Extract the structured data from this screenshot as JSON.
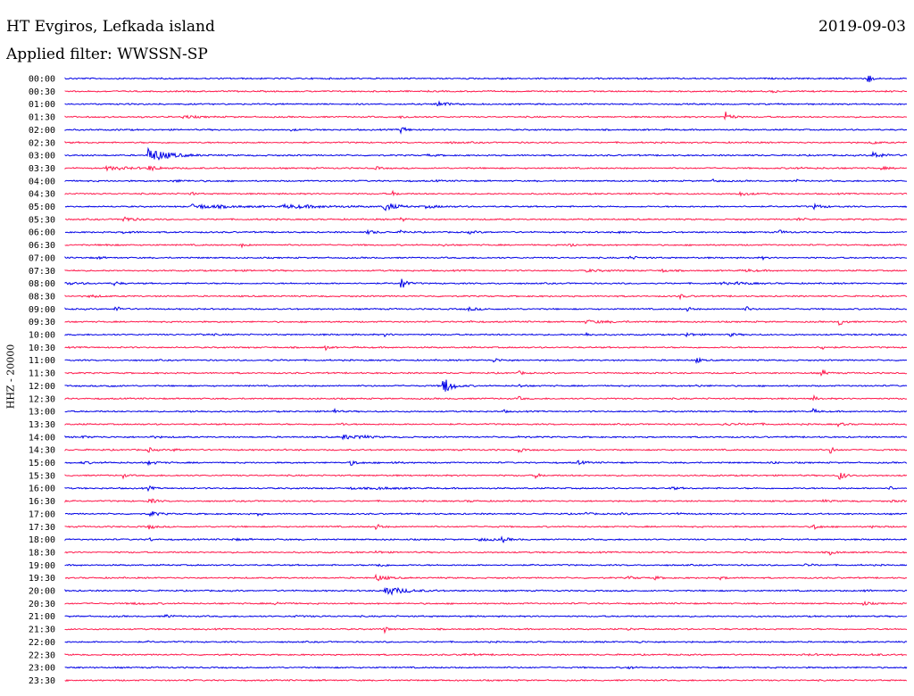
{
  "header": {
    "station": "HT Evgiros, Lefkada island",
    "date": "2019-09-03",
    "filter": "Applied filter: WWSSN-SP"
  },
  "chart_data": {
    "type": "line",
    "title": "HT Evgiros, Lefkada island",
    "ylabel": "HHZ - 20000",
    "colors": [
      "#0000e6",
      "#ff1a4d"
    ],
    "tick_labels": [
      "00:00",
      "00:30",
      "01:00",
      "01:30",
      "02:00",
      "02:30",
      "03:00",
      "03:30",
      "04:00",
      "04:30",
      "05:00",
      "05:30",
      "06:00",
      "06:30",
      "07:00",
      "07:30",
      "08:00",
      "08:30",
      "09:00",
      "09:30",
      "10:00",
      "10:30",
      "11:00",
      "11:30",
      "12:00",
      "12:30",
      "13:00",
      "13:30",
      "14:00",
      "14:30",
      "15:00",
      "15:30",
      "16:00",
      "16:30",
      "17:00",
      "17:30",
      "18:00",
      "18:30",
      "19:00",
      "19:30",
      "20:00",
      "20:30",
      "21:00",
      "21:30",
      "22:00",
      "22:30",
      "23:00",
      "23:30"
    ],
    "events": [
      [
        0,
        0.52,
        0.012,
        0.5
      ],
      [
        0,
        0.955,
        0.003,
        5
      ],
      [
        1,
        0.84,
        0.003,
        2
      ],
      [
        2,
        0.44,
        0.01,
        3
      ],
      [
        3,
        0.14,
        0.012,
        1.5
      ],
      [
        3,
        0.4,
        0.01,
        1
      ],
      [
        3,
        0.785,
        0.006,
        5
      ],
      [
        4,
        0.065,
        0.006,
        0.4
      ],
      [
        4,
        0.27,
        0.004,
        1
      ],
      [
        4,
        0.4,
        0.006,
        3
      ],
      [
        5,
        0.46,
        0.01,
        0.5
      ],
      [
        5,
        0.96,
        0.005,
        1.5
      ],
      [
        6,
        0.1,
        0.02,
        7
      ],
      [
        6,
        0.43,
        0.01,
        0.8
      ],
      [
        6,
        0.96,
        0.012,
        3
      ],
      [
        7,
        0.05,
        0.03,
        1.5
      ],
      [
        7,
        0.1,
        0.01,
        2
      ],
      [
        7,
        0.37,
        0.004,
        1.5
      ],
      [
        7,
        0.86,
        0.03,
        0.5
      ],
      [
        7,
        0.97,
        0.008,
        1
      ],
      [
        8,
        0.13,
        0.02,
        0.7
      ],
      [
        8,
        0.44,
        0.006,
        0.5
      ],
      [
        8,
        0.77,
        0.01,
        1
      ],
      [
        8,
        0.87,
        0.003,
        1
      ],
      [
        9,
        0.15,
        0.003,
        2
      ],
      [
        9,
        0.39,
        0.004,
        2
      ],
      [
        9,
        0.8,
        0.01,
        2
      ],
      [
        10,
        0.15,
        0.04,
        2
      ],
      [
        10,
        0.26,
        0.05,
        1.5
      ],
      [
        10,
        0.38,
        0.01,
        4.5
      ],
      [
        10,
        0.43,
        0.015,
        1.2
      ],
      [
        10,
        0.89,
        0.01,
        2
      ],
      [
        11,
        0.07,
        0.01,
        2.5
      ],
      [
        11,
        0.4,
        0.004,
        2
      ],
      [
        11,
        0.87,
        0.01,
        1
      ],
      [
        12,
        0.07,
        0.01,
        1
      ],
      [
        12,
        0.36,
        0.01,
        1.5
      ],
      [
        12,
        0.4,
        0.006,
        1.5
      ],
      [
        12,
        0.48,
        0.01,
        1
      ],
      [
        12,
        0.66,
        0.005,
        1.5
      ],
      [
        12,
        0.85,
        0.006,
        1.5
      ],
      [
        13,
        0.05,
        0.005,
        1
      ],
      [
        13,
        0.21,
        0.005,
        1.5
      ],
      [
        13,
        0.45,
        0.005,
        1
      ],
      [
        13,
        0.6,
        0.006,
        2
      ],
      [
        14,
        0.04,
        0.005,
        1
      ],
      [
        14,
        0.67,
        0.015,
        1
      ],
      [
        14,
        0.83,
        0.003,
        1
      ],
      [
        15,
        0.2,
        0.01,
        0.5
      ],
      [
        15,
        0.62,
        0.02,
        1
      ],
      [
        15,
        0.71,
        0.006,
        1.5
      ],
      [
        15,
        0.81,
        0.01,
        1
      ],
      [
        16,
        0.0,
        0.02,
        1
      ],
      [
        16,
        0.06,
        0.004,
        2
      ],
      [
        16,
        0.4,
        0.004,
        9
      ],
      [
        16,
        0.78,
        0.006,
        1.5
      ],
      [
        16,
        0.8,
        0.015,
        1
      ],
      [
        17,
        0.03,
        0.008,
        1.5
      ],
      [
        17,
        0.73,
        0.006,
        2
      ],
      [
        18,
        0.06,
        0.005,
        3
      ],
      [
        18,
        0.48,
        0.01,
        1.5
      ],
      [
        18,
        0.74,
        0.004,
        2
      ],
      [
        18,
        0.81,
        0.004,
        2
      ],
      [
        19,
        0.48,
        0.008,
        0.6
      ],
      [
        19,
        0.62,
        0.03,
        1.2
      ],
      [
        19,
        0.92,
        0.006,
        3
      ],
      [
        20,
        0.16,
        0.015,
        0.7
      ],
      [
        20,
        0.38,
        0.005,
        1.3
      ],
      [
        20,
        0.62,
        0.005,
        1.5
      ],
      [
        20,
        0.74,
        0.006,
        2
      ],
      [
        20,
        0.79,
        0.006,
        1.5
      ],
      [
        20,
        0.96,
        0.01,
        0.5
      ],
      [
        21,
        0.31,
        0.003,
        2
      ],
      [
        21,
        0.9,
        0.005,
        2
      ],
      [
        22,
        0.24,
        0.01,
        0.5
      ],
      [
        22,
        0.51,
        0.008,
        1.5
      ],
      [
        22,
        0.75,
        0.004,
        3
      ],
      [
        23,
        0.54,
        0.004,
        1.5
      ],
      [
        23,
        0.9,
        0.004,
        3
      ],
      [
        24,
        0.05,
        0.008,
        1
      ],
      [
        24,
        0.45,
        0.008,
        9
      ],
      [
        24,
        0.54,
        0.005,
        1.5
      ],
      [
        24,
        0.75,
        0.01,
        0.7
      ],
      [
        25,
        0.54,
        0.004,
        1.5
      ],
      [
        25,
        0.89,
        0.004,
        2
      ],
      [
        26,
        0.15,
        0.02,
        0.5
      ],
      [
        26,
        0.32,
        0.004,
        2
      ],
      [
        26,
        0.52,
        0.004,
        1.5
      ],
      [
        26,
        0.89,
        0.004,
        2
      ],
      [
        27,
        0.33,
        0.003,
        1.2
      ],
      [
        27,
        0.78,
        0.02,
        1
      ],
      [
        27,
        0.82,
        0.008,
        0.8
      ],
      [
        27,
        0.92,
        0.006,
        1.5
      ],
      [
        28,
        0.02,
        0.015,
        0.7
      ],
      [
        28,
        0.1,
        0.01,
        1
      ],
      [
        28,
        0.33,
        0.02,
        2
      ],
      [
        28,
        0.35,
        0.006,
        1.5
      ],
      [
        28,
        0.54,
        0.004,
        2
      ],
      [
        29,
        0.1,
        0.004,
        2
      ],
      [
        29,
        0.13,
        0.01,
        1
      ],
      [
        29,
        0.54,
        0.004,
        2
      ],
      [
        29,
        0.91,
        0.004,
        3
      ],
      [
        30,
        0.02,
        0.02,
        0.7
      ],
      [
        30,
        0.1,
        0.01,
        1.5
      ],
      [
        30,
        0.34,
        0.008,
        2
      ],
      [
        30,
        0.39,
        0.006,
        1
      ],
      [
        30,
        0.61,
        0.008,
        1.5
      ],
      [
        30,
        0.84,
        0.004,
        1.5
      ],
      [
        31,
        0.07,
        0.003,
        2
      ],
      [
        31,
        0.56,
        0.004,
        2
      ],
      [
        31,
        0.92,
        0.006,
        4.5
      ],
      [
        32,
        0.1,
        0.004,
        2
      ],
      [
        32,
        0.34,
        0.01,
        1
      ],
      [
        32,
        0.37,
        0.02,
        1
      ],
      [
        32,
        0.72,
        0.006,
        1.5
      ],
      [
        32,
        0.98,
        0.004,
        2
      ],
      [
        33,
        0.1,
        0.006,
        3
      ],
      [
        33,
        0.48,
        0.01,
        0.5
      ],
      [
        33,
        0.9,
        0.01,
        0.8
      ],
      [
        33,
        0.98,
        0.02,
        0.6
      ],
      [
        34,
        0.1,
        0.008,
        3
      ],
      [
        34,
        0.23,
        0.004,
        1.3
      ],
      [
        34,
        0.62,
        0.004,
        1.5
      ],
      [
        34,
        0.66,
        0.02,
        0.5
      ],
      [
        34,
        0.72,
        0.01,
        1
      ],
      [
        35,
        0.1,
        0.006,
        2
      ],
      [
        35,
        0.37,
        0.005,
        2.5
      ],
      [
        35,
        0.89,
        0.006,
        2.5
      ],
      [
        35,
        0.96,
        0.01,
        0.7
      ],
      [
        36,
        0.1,
        0.004,
        1.5
      ],
      [
        36,
        0.49,
        0.015,
        1.5
      ],
      [
        36,
        0.52,
        0.006,
        2
      ],
      [
        36,
        0.2,
        0.02,
        0.5
      ],
      [
        37,
        0.37,
        0.004,
        2
      ],
      [
        37,
        0.91,
        0.006,
        2
      ],
      [
        38,
        0.37,
        0.008,
        2
      ],
      [
        38,
        0.88,
        0.006,
        1.2
      ],
      [
        39,
        0.37,
        0.01,
        3
      ],
      [
        39,
        0.67,
        0.008,
        1.2
      ],
      [
        39,
        0.7,
        0.006,
        1.5
      ],
      [
        39,
        0.78,
        0.006,
        1.2
      ],
      [
        40,
        0.38,
        0.02,
        4.5
      ],
      [
        40,
        0.95,
        0.008,
        1
      ],
      [
        41,
        0.08,
        0.02,
        0.7
      ],
      [
        41,
        0.25,
        0.008,
        1.5
      ],
      [
        41,
        0.95,
        0.006,
        1.5
      ],
      [
        42,
        0.12,
        0.006,
        1.5
      ],
      [
        42,
        0.27,
        0.03,
        0.4
      ],
      [
        42,
        0.8,
        0.003,
        0.5
      ],
      [
        43,
        0.38,
        0.003,
        3
      ],
      [
        43,
        0.67,
        0.004,
        1
      ],
      [
        44,
        0.1,
        0.004,
        0.5
      ],
      [
        44,
        0.68,
        0.005,
        1.3
      ],
      [
        45,
        0.47,
        0.02,
        0.5
      ],
      [
        45,
        0.88,
        0.03,
        0.4
      ],
      [
        45,
        0.96,
        0.01,
        0.7
      ],
      [
        46,
        0.67,
        0.004,
        1.5
      ],
      [
        47,
        0.3,
        0.003,
        0.3
      ]
    ]
  }
}
